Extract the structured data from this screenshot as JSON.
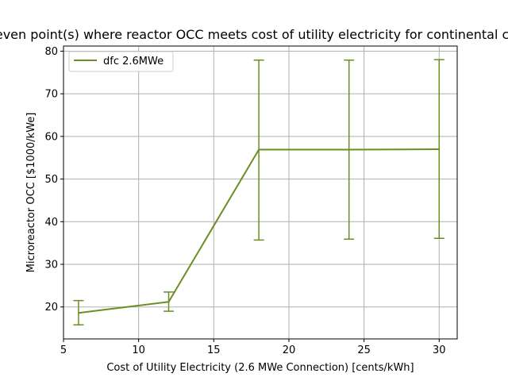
{
  "chart_data": {
    "type": "line",
    "title": "Breakeven point(s) where reactor OCC meets cost of utility electricity for continental climate",
    "xlabel": "Cost of Utility Electricity (2.6 MWe Connection) [cents/kWh]",
    "ylabel": "Microreactor OCC [$1000/kWe]",
    "xlim": [
      5,
      31.2
    ],
    "ylim": [
      12.5,
      81.2
    ],
    "xticks": [
      5,
      10,
      15,
      20,
      25,
      30
    ],
    "yticks": [
      20,
      30,
      40,
      50,
      60,
      70,
      80
    ],
    "xtick_labels": [
      "5",
      "10",
      "15",
      "20",
      "25",
      "30"
    ],
    "ytick_labels": [
      "20",
      "30",
      "40",
      "50",
      "60",
      "70",
      "80"
    ],
    "grid": true,
    "legend_position": "top-left",
    "series": [
      {
        "name": "dfc 2.6MWe",
        "color": "#6b8e23",
        "x": [
          6,
          12,
          18,
          24,
          30
        ],
        "y": [
          18.6,
          21.2,
          56.9,
          56.9,
          57.0
        ],
        "err_low": [
          15.8,
          19.0,
          35.7,
          35.9,
          36.1
        ],
        "err_high": [
          21.5,
          23.5,
          77.9,
          77.9,
          78.0
        ]
      }
    ]
  }
}
